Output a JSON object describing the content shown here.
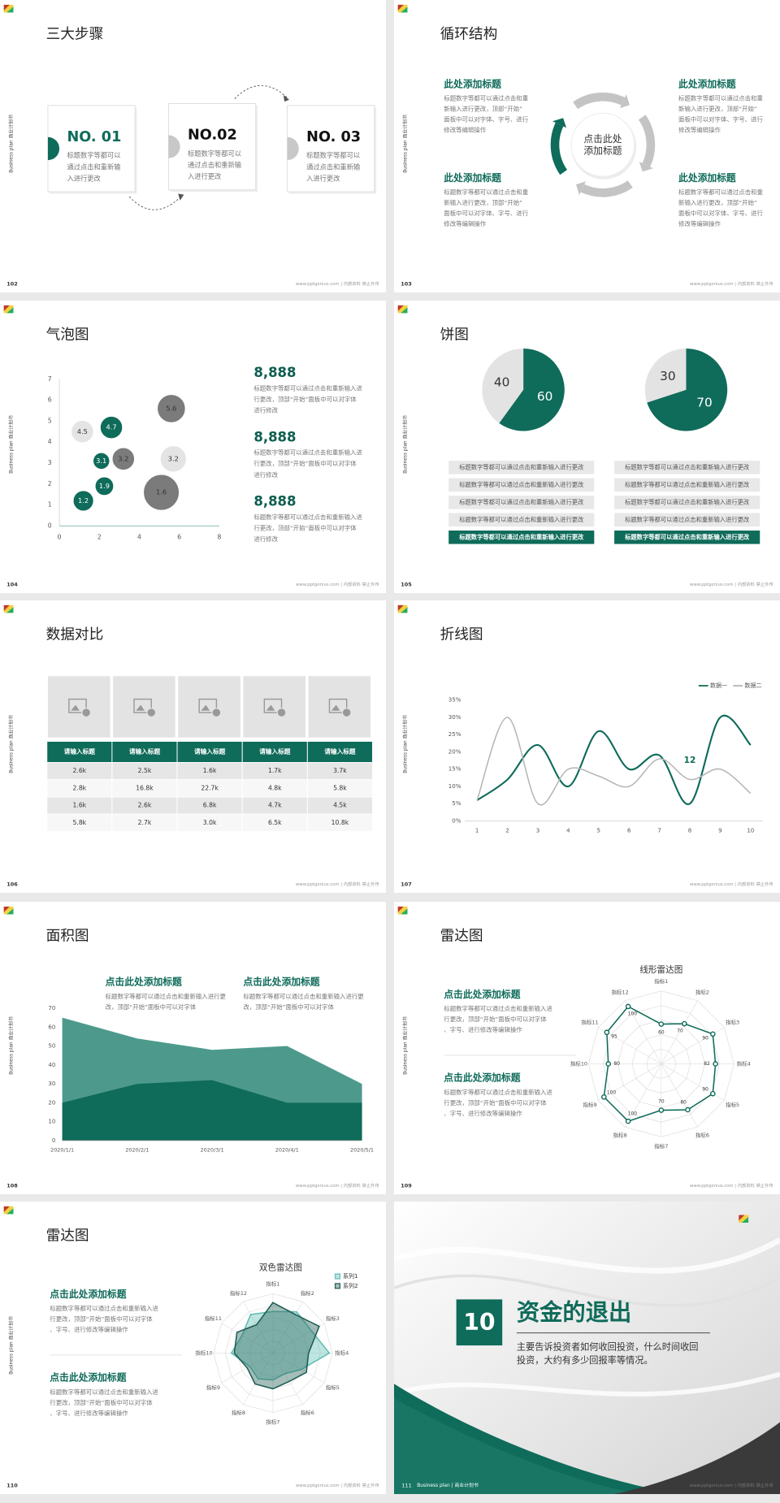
{
  "side_label": "Business plan 商业计划书",
  "footer": "www.pptgenius.com | 内部资料 禁止外传",
  "slides": [
    {
      "number": "102",
      "title": "三大步骤",
      "steps": [
        {
          "label": "NO. 01",
          "text": "标题数字等都可以通过点击和重新输入进行更改"
        },
        {
          "label": "NO.02",
          "text": "标题数字等都可以通过点击和重新输入进行更改"
        },
        {
          "label": "NO. 03",
          "text": "标题数字等都可以通过点击和重新输入进行更改"
        }
      ]
    },
    {
      "number": "103",
      "title": "循环结构",
      "center": "点击此处添加标题",
      "blocks": [
        {
          "heading": "此处添加标题",
          "text": "标题数字等都可以通过点击和重新输入进行更改，顶部“开始”面板中可以对字体、字号、进行修改等编辑操作"
        },
        {
          "heading": "此处添加标题",
          "text": "标题数字等都可以通过点击和重新输入进行更改，顶部“开始”面板中可以对字体、字号、进行修改等编辑操作"
        },
        {
          "heading": "此处添加标题",
          "text": "标题数字等都可以通过点击和重新输入进行更改，顶部“开始”面板中可以对字体、字号、进行修改等编辑操作"
        },
        {
          "heading": "此处添加标题",
          "text": "标题数字等都可以通过点击和重新输入进行更改，顶部“开始”面板中可以对字体、字号、进行修改等编辑操作"
        }
      ]
    },
    {
      "number": "104",
      "title": "气泡图",
      "chart": {
        "type": "bubble",
        "xlim": [
          0,
          8
        ],
        "ylim": [
          0,
          7
        ],
        "xticks": [
          0,
          2,
          4,
          6,
          8
        ],
        "yticks": [
          0,
          1,
          2,
          3,
          4,
          5,
          6,
          7
        ],
        "series": [
          {
            "color": "#0f6b5a",
            "label_color": "#ffffff",
            "x": [
              1.2,
              2.25,
              2.1,
              2.6
            ],
            "values": [
              1.2,
              1.9,
              3.1,
              4.7
            ],
            "sizes": [
              11,
              10,
              9,
              12
            ]
          },
          {
            "color": "#7b7b7b",
            "label_color": "#333333",
            "x": [
              3.2,
              5.6,
              5.1
            ],
            "values": [
              3.2,
              5.6,
              1.6
            ],
            "sizes": [
              12,
              15,
              19
            ]
          },
          {
            "color": "#e4e4e4",
            "label_color": "#333333",
            "x": [
              1.15,
              5.7
            ],
            "values": [
              4.5,
              3.2
            ],
            "sizes": [
              12,
              14
            ]
          }
        ]
      },
      "blocks": [
        {
          "heading": "8,888",
          "text": "标题数字等都可以通过点击和重新输入进行更改，顶部“开始”面板中可以对字体进行修改"
        },
        {
          "heading": "8,888",
          "text": "标题数字等都可以通过点击和重新输入进行更改，顶部“开始”面板中可以对字体进行修改"
        },
        {
          "heading": "8,888",
          "text": "标题数字等都可以通过点击和重新输入进行更改，顶部“开始”面板中可以对字体进行修改"
        }
      ]
    },
    {
      "number": "105",
      "title": "饼图",
      "charts": [
        {
          "type": "pie",
          "values": [
            60,
            40
          ],
          "colors": [
            "#0f6b5a",
            "#e3e3e3"
          ],
          "label_colors": [
            "#ffffff",
            "#333333"
          ]
        },
        {
          "type": "pie",
          "values": [
            70,
            30
          ],
          "colors": [
            "#0f6b5a",
            "#e3e3e3"
          ],
          "label_colors": [
            "#ffffff",
            "#333333"
          ]
        }
      ],
      "lists": [
        [
          "标题数字等都可以通过点击和重新输入进行更改",
          "标题数字等都可以通过点击和重新输入进行更改",
          "标题数字等都可以通过点击和重新输入进行更改",
          "标题数字等都可以通过点击和重新输入进行更改",
          "标题数字等都可以通过点击和重新输入进行更改"
        ],
        [
          "标题数字等都可以通过点击和重新输入进行更改",
          "标题数字等都可以通过点击和重新输入进行更改",
          "标题数字等都可以通过点击和重新输入进行更改",
          "标题数字等都可以通过点击和重新输入进行更改",
          "标题数字等都可以通过点击和重新输入进行更改"
        ]
      ]
    },
    {
      "number": "106",
      "title": "数据对比",
      "table": {
        "header": [
          "请输入标题",
          "请输入标题",
          "请输入标题",
          "请输入标题",
          "请输入标题"
        ],
        "rows": [
          [
            "2.6k",
            "2.5k",
            "1.6k",
            "1.7k",
            "3.7k"
          ],
          [
            "2.8k",
            "16.8k",
            "22.7k",
            "4.8k",
            "5.8k"
          ],
          [
            "1.6k",
            "2.6k",
            "6.8k",
            "4.7k",
            "4.5k"
          ],
          [
            "5.8k",
            "2.7k",
            "3.0k",
            "6.5k",
            "10.8k"
          ]
        ]
      }
    },
    {
      "number": "107",
      "title": "折线图",
      "chart": {
        "type": "line",
        "legend": "top-right",
        "x": [
          1,
          2,
          3,
          4,
          5,
          6,
          7,
          8,
          9,
          10
        ],
        "xlim": [
          0.6,
          10.4
        ],
        "xticks": [
          1,
          2,
          3,
          4,
          5,
          6,
          7,
          8,
          9,
          10
        ],
        "ylim": [
          0,
          35
        ],
        "yticks": [
          {
            "value": 0,
            "label": "0%"
          },
          {
            "value": 5,
            "label": "5%"
          },
          {
            "value": 10,
            "label": "10%"
          },
          {
            "value": 15,
            "label": "15%"
          },
          {
            "value": 20,
            "label": "20%"
          },
          {
            "value": 25,
            "label": "25%"
          },
          {
            "value": 30,
            "label": "30%"
          },
          {
            "value": 35,
            "label": "35%"
          }
        ],
        "series": [
          {
            "name": "数据一",
            "color": "#0f6b5a",
            "values": [
              6,
              12,
              22,
              10,
              26,
              15,
              19,
              5,
              30,
              22
            ]
          },
          {
            "name": "数据二",
            "color": "#b5b5b5",
            "values": [
              6,
              30,
              5,
              15,
              13,
              10,
              18,
              12,
              15,
              8
            ],
            "label_points": [
              7
            ]
          }
        ]
      }
    },
    {
      "number": "108",
      "title": "面积图",
      "chart": {
        "type": "area",
        "categories": [
          "2020/1/1",
          "2020/2/1",
          "2020/3/1",
          "2020/4/1",
          "2020/5/1"
        ],
        "ylim": [
          0,
          70
        ],
        "yticks": [
          0,
          10,
          20,
          30,
          40,
          50,
          60,
          70
        ],
        "series": [
          {
            "color": "#4d9a8c",
            "values": [
              65,
              54,
              48,
              50,
              30
            ]
          },
          {
            "color": "#0f6b5a",
            "values": [
              20,
              30,
              32,
              20,
              20
            ]
          }
        ]
      },
      "blocks": [
        {
          "heading": "点击此处添加标题",
          "text": "标题数字等都可以通过点击和重新输入进行更改，顶部“开始”面板中可以对字体"
        },
        {
          "heading": "点击此处添加标题",
          "text": "标题数字等都可以通过点击和重新输入进行更改，顶部“开始”面板中可以对字体"
        }
      ]
    },
    {
      "number": "109",
      "title": "雷达图",
      "chart": {
        "type": "radar",
        "title": "线形雷达图",
        "data_labels": true,
        "categories": [
          "指标1",
          "指标2",
          "指标3",
          "指标4",
          "指标5",
          "指标6",
          "指标7",
          "指标8",
          "指标9",
          "指标10",
          "指标11",
          "指标12"
        ],
        "rlim": [
          0,
          110
        ],
        "series": [
          {
            "color": "#0f6b5a",
            "values": [
              60,
              70,
              90,
              82,
              90,
              80,
              70,
              100,
              100,
              80,
              95,
              100
            ]
          }
        ]
      },
      "blocks": [
        {
          "heading": "点击此处添加标题",
          "text": "标题数字等都可以通过点击和重新输入进行更改，顶部“开始”面板中可以对字体、字号、进行修改等编辑操作"
        },
        {
          "heading": "点击此处添加标题",
          "text": "标题数字等都可以通过点击和重新输入进行更改，顶部“开始”面板中可以对字体、字号、进行修改等编辑操作"
        }
      ]
    },
    {
      "number": "110",
      "title": "雷达图",
      "chart": {
        "type": "radar",
        "title": "双色雷达图",
        "legend": "top-right",
        "categories": [
          "指标1",
          "指标2",
          "指标3",
          "指标4",
          "指标5",
          "指标6",
          "指标7",
          "指标8",
          "指标9",
          "指标10",
          "指标11",
          "指标12"
        ],
        "rlim": [
          0,
          100
        ],
        "series": [
          {
            "name": "系列1",
            "color": "#5fbdb3",
            "values": [
              70,
              80,
              75,
              95,
              55,
              40,
              45,
              50,
              45,
              70,
              60,
              75
            ]
          },
          {
            "name": "系列2",
            "color": "#1d5c52",
            "values": [
              85,
              75,
              90,
              60,
              65,
              55,
              60,
              60,
              50,
              65,
              70,
              55
            ]
          }
        ]
      },
      "blocks": [
        {
          "heading": "点击此处添加标题",
          "text": "标题数字等都可以通过点击和重新输入进行更改，顶部“开始”面板中可以对字体、字号、进行修改等编辑操作"
        },
        {
          "heading": "点击此处添加标题",
          "text": "标题数字等都可以通过点击和重新输入进行更改，顶部“开始”面板中可以对字体、字号、进行修改等编辑操作"
        }
      ]
    },
    {
      "number": "111",
      "chapter": "10",
      "title": "资金的退出",
      "text": "主要告诉投资者如何收回投资，什么时间收回投资，大约有多少回报率等情况。",
      "footer": "Business plan | 商业计划书"
    }
  ]
}
